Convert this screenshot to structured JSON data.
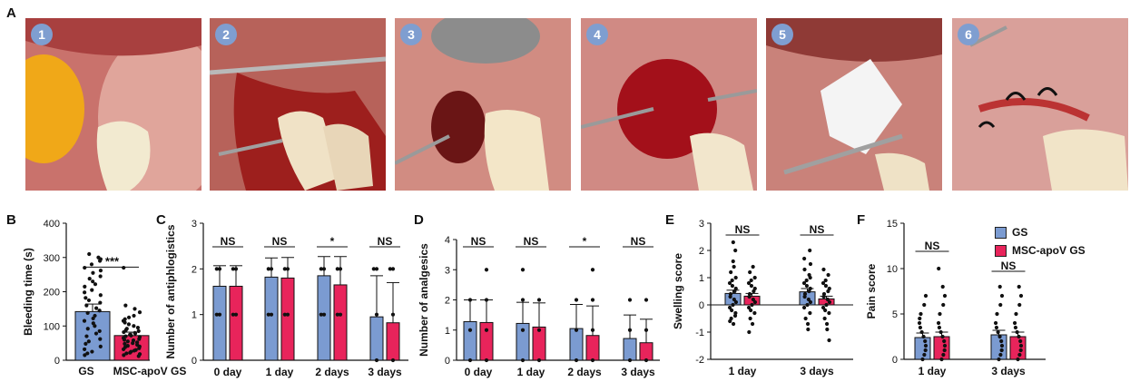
{
  "panel_a": {
    "letter": "A",
    "photos": [
      {
        "badge": "1",
        "scene": "cheek"
      },
      {
        "badge": "2",
        "scene": "incision"
      },
      {
        "badge": "3",
        "scene": "socket"
      },
      {
        "badge": "4",
        "scene": "bleeding"
      },
      {
        "badge": "5",
        "scene": "sponge"
      },
      {
        "badge": "6",
        "scene": "suture"
      }
    ]
  },
  "legend": {
    "items": [
      {
        "label": "GS",
        "color": "#7b9bd1"
      },
      {
        "label": "MSC-apoV GS",
        "color": "#e8245b"
      }
    ]
  },
  "colors": {
    "gs": "#7b9bd1",
    "msc": "#e8245b"
  },
  "chart_data": [
    {
      "id": "B",
      "letter": "B",
      "type": "bar",
      "ylabel": "Bleeding time (s)",
      "ylim": [
        0,
        400
      ],
      "yticks": [
        0,
        100,
        200,
        300,
        400
      ],
      "categories": [
        "GS",
        "MSC-apoV GS"
      ],
      "values": [
        142,
        72
      ],
      "errors": [
        22,
        10
      ],
      "points": [
        [
          310,
          300,
          295,
          290,
          280,
          270,
          262,
          255,
          245,
          238,
          230,
          222,
          215,
          205,
          198,
          190,
          182,
          175,
          168,
          160,
          152,
          145,
          138,
          130,
          122,
          115,
          108,
          100,
          92,
          85,
          78,
          70,
          62,
          55,
          48,
          40,
          32,
          25,
          20,
          15
        ],
        [
          270,
          160,
          150,
          140,
          130,
          125,
          120,
          115,
          110,
          105,
          100,
          95,
          92,
          88,
          85,
          82,
          80,
          78,
          75,
          72,
          70,
          68,
          65,
          62,
          60,
          58,
          55,
          52,
          50,
          48,
          45,
          42,
          40,
          38,
          35,
          32,
          30,
          28,
          25,
          22,
          20,
          18,
          15,
          12
        ]
      ],
      "significance": [
        {
          "from": 0,
          "to": 1,
          "label": "***"
        }
      ]
    },
    {
      "id": "C",
      "letter": "C",
      "type": "bar",
      "ylabel": "Number of antiphlogistics",
      "ylim": [
        0,
        3
      ],
      "yticks": [
        0,
        1,
        2,
        3
      ],
      "categories": [
        "0 day",
        "1 day",
        "2 days",
        "3 days"
      ],
      "series": [
        {
          "name": "GS",
          "values": [
            1.62,
            1.82,
            1.85,
            0.95
          ],
          "errors": [
            0.45,
            0.42,
            0.42,
            0.9
          ]
        },
        {
          "name": "MSC-apoV GS",
          "values": [
            1.62,
            1.8,
            1.65,
            0.82
          ],
          "errors": [
            0.45,
            0.45,
            0.62,
            0.88
          ]
        }
      ],
      "points": [
        [
          [
            2,
            1,
            2,
            1
          ],
          [
            2,
            1,
            2,
            1
          ]
        ],
        [
          [
            2,
            1,
            2,
            1
          ],
          [
            2,
            1,
            2,
            1
          ]
        ],
        [
          [
            2,
            1,
            2,
            1
          ],
          [
            2,
            1,
            2,
            1
          ]
        ],
        [
          [
            2,
            1,
            0,
            2
          ],
          [
            2,
            1,
            0,
            2
          ]
        ]
      ],
      "significance": [
        {
          "group": 0,
          "label": "NS"
        },
        {
          "group": 1,
          "label": "NS"
        },
        {
          "group": 2,
          "label": "*"
        },
        {
          "group": 3,
          "label": "NS"
        }
      ]
    },
    {
      "id": "D",
      "letter": "D",
      "type": "bar",
      "ylabel": "Number of analgesics",
      "ylim": [
        0,
        4
      ],
      "yticks": [
        0,
        1,
        2,
        3,
        4
      ],
      "categories": [
        "0 day",
        "1 day",
        "2 days",
        "3 days"
      ],
      "series": [
        {
          "name": "GS",
          "values": [
            1.28,
            1.22,
            1.05,
            0.72
          ],
          "errors": [
            0.72,
            0.7,
            0.8,
            0.78
          ]
        },
        {
          "name": "MSC-apoV GS",
          "values": [
            1.25,
            1.1,
            0.82,
            0.58
          ],
          "errors": [
            0.75,
            0.8,
            0.98,
            0.78
          ]
        }
      ],
      "points": [
        [
          [
            2,
            1,
            0
          ],
          [
            3,
            2,
            1,
            0
          ]
        ],
        [
          [
            3,
            2,
            1,
            0
          ],
          [
            2,
            1,
            0
          ]
        ],
        [
          [
            2,
            1,
            0
          ],
          [
            3,
            2,
            1,
            0
          ]
        ],
        [
          [
            2,
            1,
            0
          ],
          [
            2,
            1,
            0
          ]
        ]
      ],
      "significance": [
        {
          "group": 0,
          "label": "NS"
        },
        {
          "group": 1,
          "label": "NS"
        },
        {
          "group": 2,
          "label": "*"
        },
        {
          "group": 3,
          "label": "NS"
        }
      ]
    },
    {
      "id": "E",
      "letter": "E",
      "type": "bar",
      "ylabel": "Swelling score",
      "ylim": [
        -2,
        3
      ],
      "yticks": [
        -2,
        -1,
        0,
        1,
        2,
        3
      ],
      "categories": [
        "1 day",
        "3 days"
      ],
      "series": [
        {
          "name": "GS",
          "values": [
            0.42,
            0.48
          ],
          "errors": [
            0.12,
            0.12
          ]
        },
        {
          "name": "MSC-apoV GS",
          "values": [
            0.32,
            0.22
          ],
          "errors": [
            0.1,
            0.1
          ]
        }
      ],
      "points": [
        [
          [
            2.3,
            2.0,
            1.6,
            1.4,
            1.2,
            1.0,
            0.9,
            0.8,
            0.7,
            0.6,
            0.5,
            0.4,
            0.3,
            0.2,
            0.1,
            0.0,
            -0.1,
            -0.2,
            -0.3,
            -0.4,
            -0.5,
            -0.6,
            -0.7
          ],
          [
            1.4,
            1.2,
            1.0,
            0.9,
            0.8,
            0.7,
            0.6,
            0.5,
            0.4,
            0.3,
            0.2,
            0.1,
            0.0,
            -0.1,
            -0.2,
            -0.3,
            -0.5,
            -0.7,
            -1.0
          ]
        ],
        [
          [
            2.0,
            1.7,
            1.5,
            1.3,
            1.1,
            1.0,
            0.9,
            0.8,
            0.7,
            0.6,
            0.5,
            0.4,
            0.3,
            0.2,
            0.1,
            0.0,
            -0.1,
            -0.3,
            -0.5,
            -0.7,
            -0.9
          ],
          [
            1.3,
            1.1,
            0.9,
            0.8,
            0.7,
            0.6,
            0.5,
            0.4,
            0.3,
            0.2,
            0.1,
            0.0,
            -0.1,
            -0.2,
            -0.3,
            -0.5,
            -0.7,
            -0.9,
            -1.3
          ]
        ]
      ],
      "significance": [
        {
          "group": 0,
          "label": "NS"
        },
        {
          "group": 1,
          "label": "NS"
        }
      ]
    },
    {
      "id": "F",
      "letter": "F",
      "type": "bar",
      "ylabel": "Pain score",
      "ylim": [
        0,
        15
      ],
      "yticks": [
        0,
        5,
        10,
        15
      ],
      "categories": [
        "1 day",
        "3 days"
      ],
      "series": [
        {
          "name": "GS",
          "values": [
            2.4,
            2.7
          ],
          "errors": [
            0.5,
            0.5
          ]
        },
        {
          "name": "MSC-apoV GS",
          "values": [
            2.5,
            2.5
          ],
          "errors": [
            0.5,
            0.5
          ]
        }
      ],
      "points": [
        [
          [
            7,
            6,
            5,
            4.5,
            4,
            3.5,
            3,
            2.5,
            2,
            1.5,
            1,
            0.5,
            0
          ],
          [
            10,
            8,
            7,
            6,
            5,
            4,
            3.5,
            3,
            2.5,
            2,
            1.5,
            1,
            0.5,
            0
          ]
        ],
        [
          [
            8,
            7,
            6,
            5,
            4,
            3.5,
            3,
            2.5,
            2,
            1.5,
            1,
            0.5,
            0
          ],
          [
            8,
            7,
            6,
            5,
            4,
            3.5,
            3,
            2.5,
            2,
            1.5,
            1,
            0.5,
            0
          ]
        ]
      ],
      "significance": [
        {
          "group": 0,
          "label": "NS"
        },
        {
          "group": 1,
          "label": "NS"
        }
      ]
    }
  ]
}
